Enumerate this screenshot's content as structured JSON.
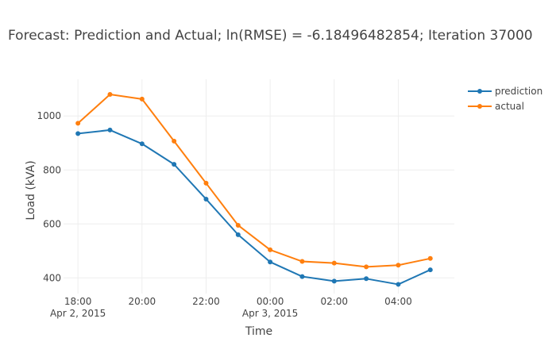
{
  "chart_data": {
    "type": "line",
    "title": "Forecast: Prediction and Actual; ln(RMSE) = -6.18496482854; Iteration 37000",
    "xlabel": "Time",
    "ylabel": "Load (kVA)",
    "x": [
      "2015-04-02 18:00",
      "2015-04-02 19:00",
      "2015-04-02 20:00",
      "2015-04-02 21:00",
      "2015-04-02 22:00",
      "2015-04-02 23:00",
      "2015-04-03 00:00",
      "2015-04-03 01:00",
      "2015-04-03 02:00",
      "2015-04-03 03:00",
      "2015-04-03 04:00",
      "2015-04-03 05:00"
    ],
    "x_range": [
      "2015-04-02 17:33",
      "2015-04-03 05:45"
    ],
    "x_ticks": [
      {
        "at": "2015-04-02 18:00",
        "label": "18:00",
        "sublabel": "Apr 2, 2015"
      },
      {
        "at": "2015-04-02 20:00",
        "label": "20:00",
        "sublabel": ""
      },
      {
        "at": "2015-04-02 22:00",
        "label": "22:00",
        "sublabel": ""
      },
      {
        "at": "2015-04-03 00:00",
        "label": "00:00",
        "sublabel": "Apr 3, 2015"
      },
      {
        "at": "2015-04-03 02:00",
        "label": "02:00",
        "sublabel": ""
      },
      {
        "at": "2015-04-03 04:00",
        "label": "04:00",
        "sublabel": ""
      }
    ],
    "ylim": [
      342,
      1136
    ],
    "y_ticks": [
      400,
      600,
      800,
      1000
    ],
    "grid": true,
    "legend_position": "top-right",
    "series": [
      {
        "name": "prediction",
        "color": "#1f77b4",
        "values": [
          935,
          948,
          897,
          821,
          692,
          560,
          459,
          405,
          388,
          397,
          376,
          430
        ]
      },
      {
        "name": "actual",
        "color": "#ff7f0e",
        "values": [
          973,
          1080,
          1063,
          907,
          751,
          595,
          504,
          461,
          455,
          441,
          447,
          472
        ]
      }
    ]
  }
}
